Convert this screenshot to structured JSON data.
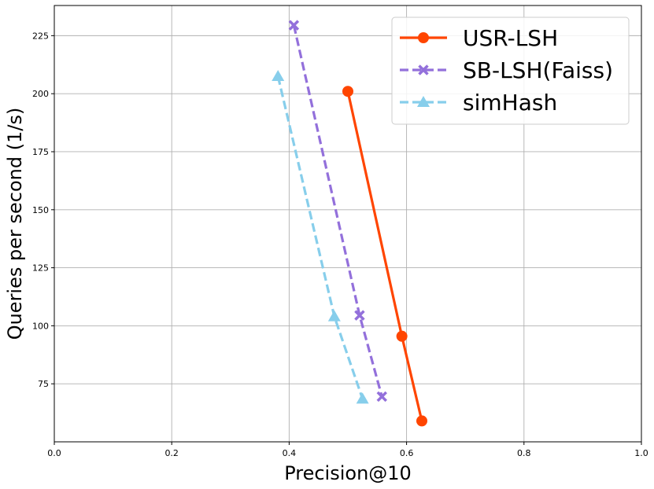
{
  "chart_data": {
    "type": "line",
    "xlabel": "Precision@10",
    "ylabel": "Queries per second (1/s)",
    "xlim": [
      0.0,
      1.0
    ],
    "ylim": [
      50,
      238
    ],
    "x_ticks": [
      0.0,
      0.2,
      0.4,
      0.6,
      0.8,
      1.0
    ],
    "x_tick_labels": [
      "0.0",
      "0.2",
      "0.4",
      "0.6",
      "0.8",
      "1.0"
    ],
    "y_ticks": [
      75,
      100,
      125,
      150,
      175,
      200,
      225
    ],
    "y_tick_labels": [
      "75",
      "100",
      "125",
      "150",
      "175",
      "200",
      "225"
    ],
    "grid": true,
    "legend_position": "top-right",
    "series": [
      {
        "name": "USR-LSH",
        "color": "#ff4500",
        "line_style": "solid",
        "marker": "circle",
        "x": [
          0.5,
          0.592,
          0.626
        ],
        "y": [
          201,
          95.5,
          59
        ]
      },
      {
        "name": "SB-LSH(Faiss)",
        "color": "#9370db",
        "line_style": "dashed",
        "marker": "x",
        "x": [
          0.408,
          0.52,
          0.558
        ],
        "y": [
          229.5,
          104.5,
          69.5
        ]
      },
      {
        "name": "simHash",
        "color": "#87ceeb",
        "line_style": "dashed",
        "marker": "triangle",
        "x": [
          0.381,
          0.477,
          0.525
        ],
        "y": [
          207.5,
          104,
          68.5
        ]
      }
    ]
  }
}
